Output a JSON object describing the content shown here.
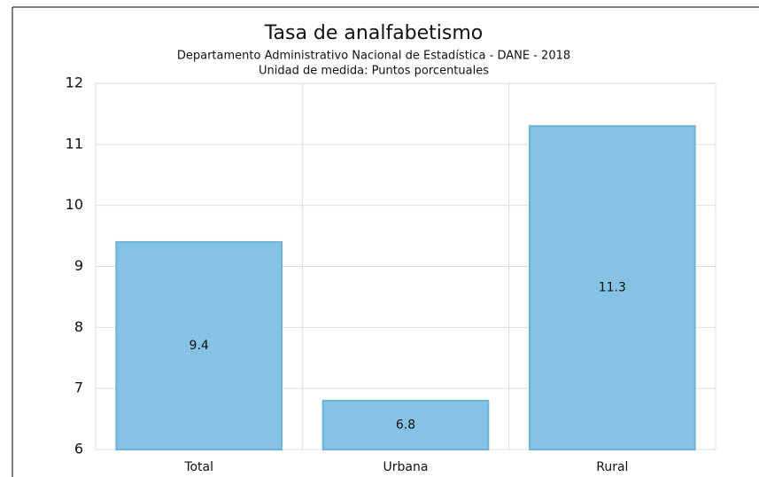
{
  "chart_data": {
    "type": "bar",
    "title": "Tasa de analfabetismo",
    "subtitle": "Departamento Administrativo Nacional de Estadística - DANE - 2018",
    "unit_note": "Unidad de medida: Puntos porcentuales",
    "categories": [
      "Total",
      "Urbana",
      "Rural"
    ],
    "values": [
      9.4,
      6.8,
      11.3
    ],
    "color": "#85c2e3",
    "ylim": [
      6,
      12
    ],
    "yticks": [
      6,
      7,
      8,
      9,
      10,
      11,
      12
    ],
    "grid": true
  }
}
